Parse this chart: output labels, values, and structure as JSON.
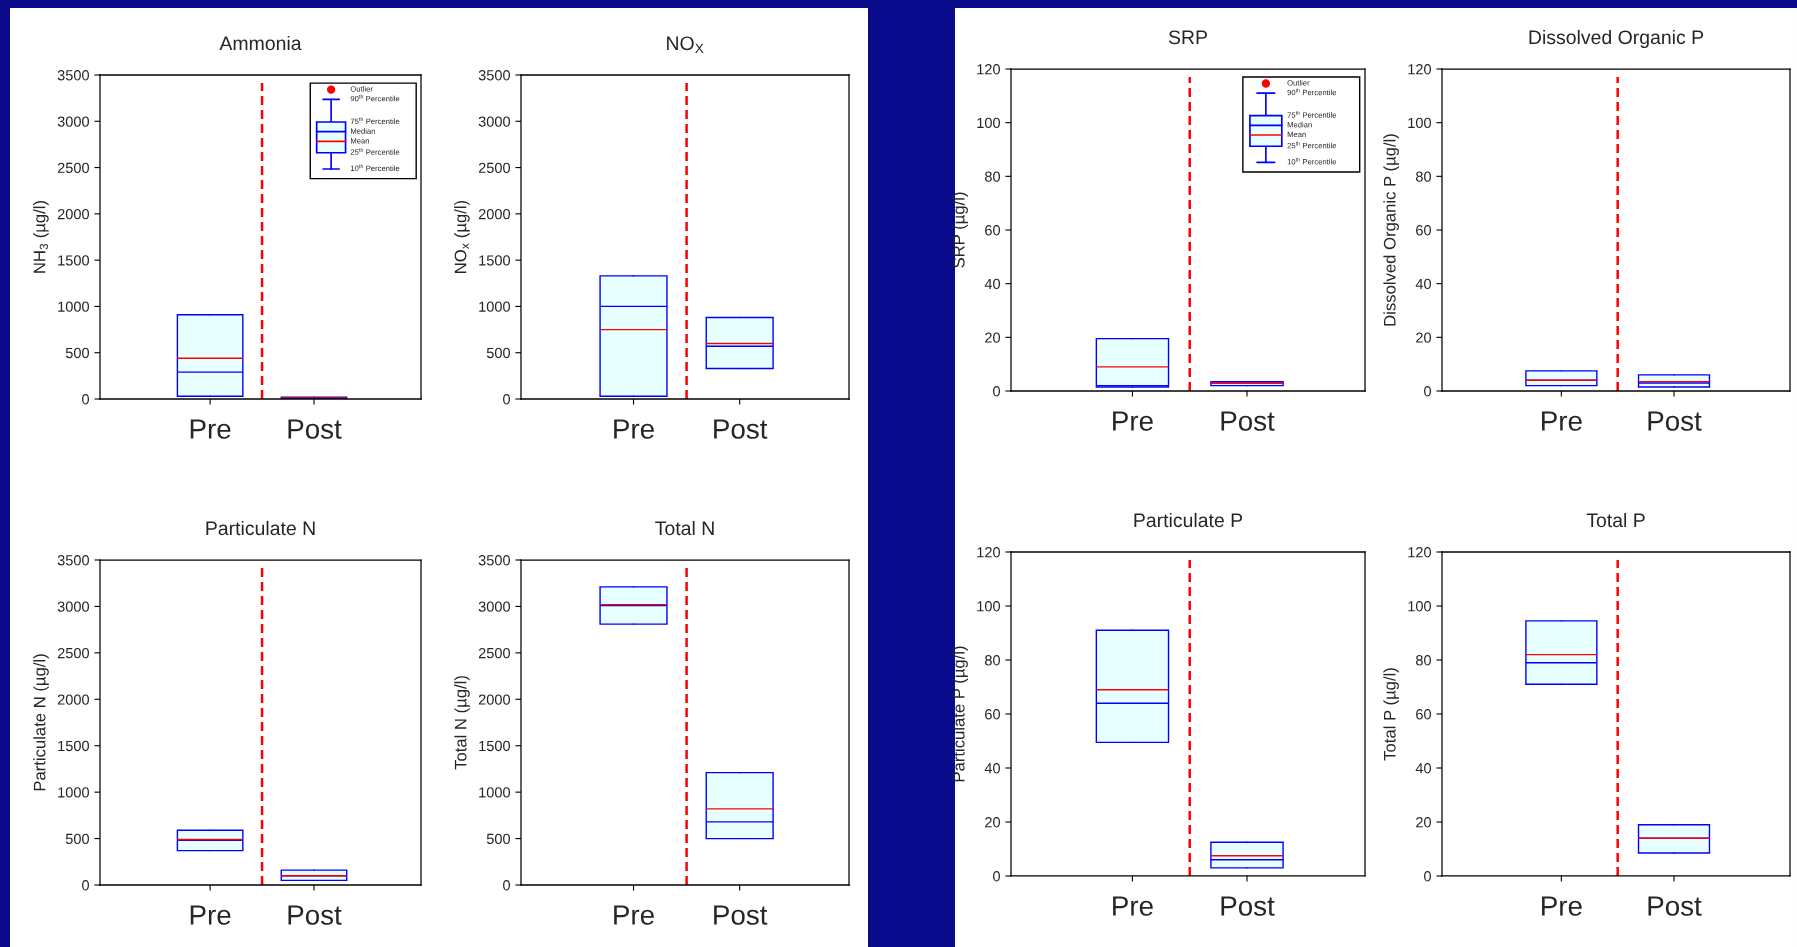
{
  "chart_data": [
    {
      "type": "box",
      "title": "Ammonia",
      "ylabel": "NH$_{3}$ (µg/l)",
      "categories": [
        "Pre",
        "Post"
      ],
      "ylim": [
        0,
        3500
      ],
      "yticks": [
        0,
        500,
        1000,
        1500,
        2000,
        2500,
        3000,
        3500
      ],
      "boxes": [
        {
          "low": 30,
          "q1": 30,
          "median": 290,
          "mean": 440,
          "q3": 910,
          "high": 910
        },
        {
          "low": 5,
          "q1": 5,
          "median": 10,
          "mean": 12,
          "q3": 20,
          "high": 20
        }
      ],
      "annotations": [
        "Outlier",
        "90$^{th}$ Percentile",
        "75$^{th}$ Percentile",
        "Median",
        "Mean",
        "25$^{th}$ Percentile",
        "10$^{th}$ Percentile"
      ]
    },
    {
      "type": "box",
      "title": "NO$_{X}$",
      "ylabel": "NO$_{x}$ (µg/l)",
      "categories": [
        "Pre",
        "Post"
      ],
      "ylim": [
        0,
        3500
      ],
      "yticks": [
        0,
        500,
        1000,
        1500,
        2000,
        2500,
        3000,
        3500
      ],
      "boxes": [
        {
          "low": 30,
          "q1": 30,
          "median": 1000,
          "mean": 750,
          "q3": 1330,
          "high": 1330
        },
        {
          "low": 330,
          "q1": 330,
          "median": 570,
          "mean": 600,
          "q3": 880,
          "high": 880
        }
      ]
    },
    {
      "type": "box",
      "title": "SRP",
      "ylabel": "SRP (µg/l)",
      "categories": [
        "Pre",
        "Post"
      ],
      "ylim": [
        0,
        120
      ],
      "yticks": [
        0,
        20,
        40,
        60,
        80,
        100,
        120
      ],
      "boxes": [
        {
          "low": 1.5,
          "q1": 1.5,
          "median": 2,
          "mean": 9,
          "q3": 19.5,
          "high": 19.5
        },
        {
          "low": 2,
          "q1": 2,
          "median": 3,
          "mean": 3,
          "q3": 3.5,
          "high": 3.5
        }
      ],
      "annotations": [
        "Outlier",
        "90$^{th}$ Percentile",
        "75$^{th}$ Percentile",
        "Median",
        "Mean",
        "25$^{th}$ Percentile",
        "10$^{th}$ Percentile"
      ]
    },
    {
      "type": "box",
      "title": "Dissolved Organic P",
      "ylabel": "Dissolved Organic P (µg/l)",
      "categories": [
        "Pre",
        "Post"
      ],
      "ylim": [
        0,
        120
      ],
      "yticks": [
        0,
        20,
        40,
        60,
        80,
        100,
        120
      ],
      "boxes": [
        {
          "low": 2,
          "q1": 2,
          "median": 4,
          "mean": 4,
          "q3": 7.5,
          "high": 7.5
        },
        {
          "low": 1.5,
          "q1": 1.5,
          "median": 3,
          "mean": 3.5,
          "q3": 6,
          "high": 6
        }
      ]
    },
    {
      "type": "box",
      "title": "Particulate N",
      "ylabel": "Particulate N (µg/l)",
      "categories": [
        "Pre",
        "Post"
      ],
      "ylim": [
        0,
        3500
      ],
      "yticks": [
        0,
        500,
        1000,
        1500,
        2000,
        2500,
        3000,
        3500
      ],
      "boxes": [
        {
          "low": 370,
          "q1": 370,
          "median": 480,
          "mean": 490,
          "q3": 590,
          "high": 590
        },
        {
          "low": 50,
          "q1": 50,
          "median": 100,
          "mean": 100,
          "q3": 160,
          "high": 160
        }
      ]
    },
    {
      "type": "box",
      "title": "Total N",
      "ylabel": "Total N (µg/l)",
      "categories": [
        "Pre",
        "Post"
      ],
      "ylim": [
        0,
        3500
      ],
      "yticks": [
        0,
        500,
        1000,
        1500,
        2000,
        2500,
        3000,
        3500
      ],
      "boxes": [
        {
          "low": 2810,
          "q1": 2810,
          "median": 3010,
          "mean": 3020,
          "q3": 3210,
          "high": 3210
        },
        {
          "low": 500,
          "q1": 500,
          "median": 680,
          "mean": 820,
          "q3": 1210,
          "high": 1210
        }
      ]
    },
    {
      "type": "box",
      "title": "Particulate P",
      "ylabel": "Particulate P (µg/l)",
      "categories": [
        "Pre",
        "Post"
      ],
      "ylim": [
        0,
        120
      ],
      "yticks": [
        0,
        20,
        40,
        60,
        80,
        100,
        120
      ],
      "boxes": [
        {
          "low": 49.5,
          "q1": 49.5,
          "median": 64,
          "mean": 69,
          "q3": 91,
          "high": 91
        },
        {
          "low": 3,
          "q1": 3,
          "median": 6,
          "mean": 7.5,
          "q3": 12.5,
          "high": 12.5
        }
      ]
    },
    {
      "type": "box",
      "title": "Total P",
      "ylabel": "Total P (µg/l)",
      "categories": [
        "Pre",
        "Post"
      ],
      "ylim": [
        0,
        120
      ],
      "yticks": [
        0,
        20,
        40,
        60,
        80,
        100,
        120
      ],
      "boxes": [
        {
          "low": 71,
          "q1": 71,
          "median": 79,
          "mean": 82,
          "q3": 94.5,
          "high": 94.5
        },
        {
          "low": 8.5,
          "q1": 8.5,
          "median": 14,
          "mean": 14,
          "q3": 19,
          "high": 19
        }
      ]
    }
  ]
}
